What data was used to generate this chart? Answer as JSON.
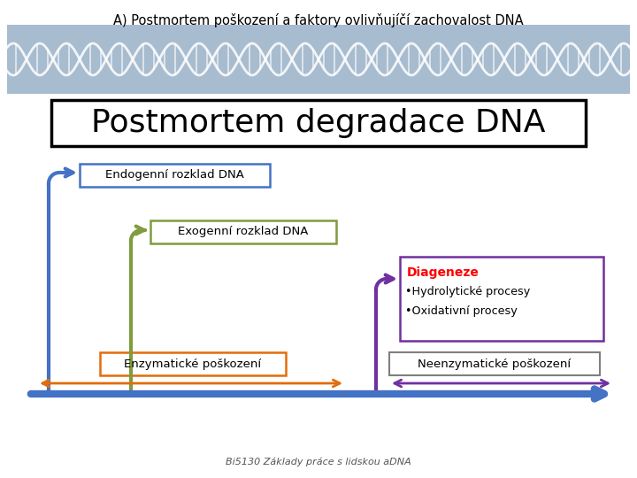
{
  "title": "A) Postmortem poškození a faktory ovlivňujíčí zachovalost DNA",
  "main_heading": "Postmortem degradace DNA",
  "box1_text": "Endogenní rozklad DNA",
  "box2_text": "Exogenní rozklad DNA",
  "box3_text": "Enzymatické poškození",
  "box4_title": "Diageneze",
  "box4_bullet1": "•Hydrolytické procesy",
  "box4_bullet2": "•Oxidativní procesy",
  "box5_text": "Neenzymatické poškození",
  "footer": "Bi5130 Základy práce s lidskou aDNA",
  "bg_color": "#ffffff",
  "header_bg": "#a8bccf",
  "main_box_border": "#000000",
  "box1_border": "#4472c4",
  "box2_border": "#7f9c3e",
  "box3_border": "#e36c0a",
  "box4_border": "#7030a0",
  "box4_title_color": "#ff0000",
  "box5_border": "#7f7f7f",
  "arrow1_color": "#4472c4",
  "arrow2_color": "#7f9c3e",
  "arrow3_color": "#e36c0a",
  "arrow4_color": "#4472c4",
  "arrow5_color": "#7030a0"
}
